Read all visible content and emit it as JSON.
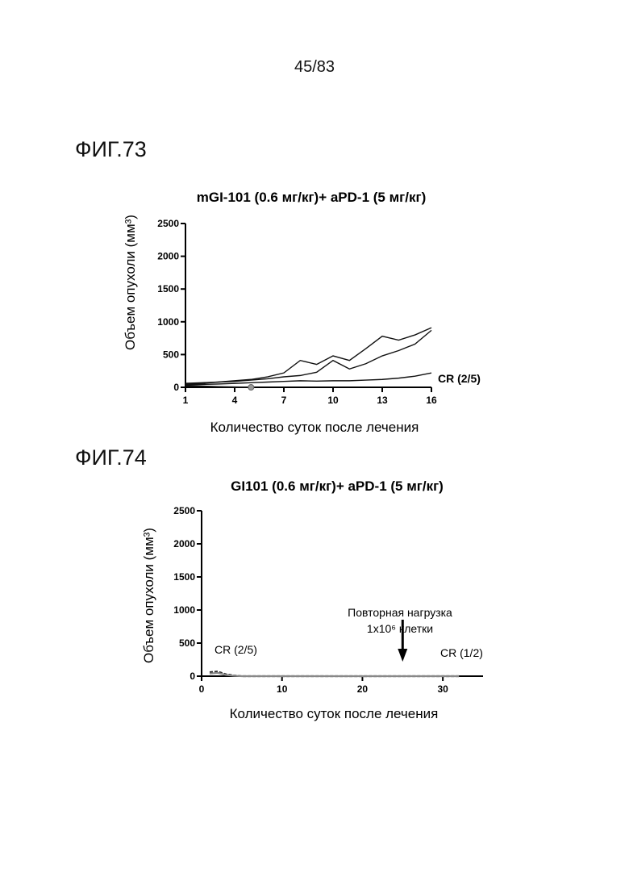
{
  "page": {
    "number": "45/83"
  },
  "figures": [
    {
      "label": "ФИГ.73",
      "title": "mGI-101 (0.6 мг/кг)+ aPD-1 (5 мг/кг)",
      "ylabel": "Объем опухоли (мм³)",
      "xlabel": "Количество суток после лечения",
      "annotation": "CR (2/5)"
    },
    {
      "label": "ФИГ.74",
      "title": "GI101 (0.6 мг/кг)+ aPD-1 (5 мг/кг)",
      "ylabel": "Объем опухоли (мм³)",
      "xlabel": "Количество суток после лечения",
      "annotation_left": "CR (2/5)",
      "annotation_right": "CR (1/2)",
      "arrow_label_1": "Повторная нагрузка",
      "arrow_label_2": "1x10⁶ клетки"
    }
  ],
  "chart_data": [
    {
      "type": "line",
      "title": "mGI-101 (0.6 мг/кг)+ aPD-1 (5 мг/кг)",
      "xlabel": "Количество суток после лечения",
      "ylabel": "Объем опухоли (мм³)",
      "xlim": [
        1,
        16
      ],
      "ylim": [
        0,
        2500
      ],
      "xticks": [
        1,
        4,
        7,
        10,
        13,
        16
      ],
      "yticks": [
        0,
        500,
        1000,
        1500,
        2000,
        2500
      ],
      "series": [
        {
          "x": [
            1,
            2,
            3,
            4,
            5,
            6,
            7,
            8,
            9,
            10,
            11,
            12,
            13,
            14,
            15,
            16
          ],
          "values": [
            60,
            70,
            80,
            100,
            120,
            160,
            220,
            410,
            350,
            480,
            410,
            590,
            780,
            720,
            800,
            910
          ]
        },
        {
          "x": [
            1,
            2,
            3,
            4,
            5,
            6,
            7,
            8,
            9,
            10,
            11,
            12,
            13,
            14,
            15,
            16
          ],
          "values": [
            50,
            60,
            80,
            90,
            110,
            130,
            160,
            180,
            230,
            410,
            280,
            360,
            480,
            560,
            660,
            870
          ]
        },
        {
          "x": [
            1,
            2,
            3,
            4,
            5,
            6,
            7,
            8,
            9,
            10,
            11,
            12,
            13,
            14,
            15,
            16
          ],
          "values": [
            40,
            45,
            50,
            60,
            70,
            80,
            90,
            100,
            95,
            100,
            100,
            110,
            120,
            140,
            170,
            220
          ]
        },
        {
          "x": [
            1,
            2,
            3,
            4,
            5
          ],
          "values": [
            30,
            20,
            10,
            5,
            0
          ]
        },
        {
          "x": [
            1,
            2,
            3,
            4,
            5
          ],
          "values": [
            20,
            10,
            5,
            0,
            0
          ]
        }
      ],
      "markers": [
        {
          "x": 5,
          "y": 0
        }
      ],
      "annotations": [
        {
          "text": "CR (2/5)",
          "x": 16,
          "y": 150
        }
      ]
    },
    {
      "type": "line",
      "title": "GI101 (0.6 мг/кг)+ aPD-1 (5 мг/кг)",
      "xlabel": "Количество суток после лечения",
      "ylabel": "Объем опухоли (мм³)",
      "xlim": [
        0,
        35
      ],
      "ylim": [
        0,
        2500
      ],
      "xticks": [
        0,
        10,
        20,
        30
      ],
      "yticks": [
        0,
        500,
        1000,
        1500,
        2000,
        2500
      ],
      "series": [
        {
          "x": [
            1,
            2,
            3,
            4,
            5,
            8,
            11,
            14,
            17,
            20,
            23,
            26,
            29,
            32
          ],
          "values": [
            60,
            70,
            30,
            10,
            0,
            0,
            0,
            0,
            0,
            0,
            0,
            0,
            0,
            0
          ]
        },
        {
          "x": [
            1,
            2,
            3,
            4,
            5,
            8,
            11,
            14,
            17,
            20,
            23,
            26,
            29,
            32
          ],
          "values": [
            40,
            50,
            20,
            5,
            0,
            0,
            0,
            0,
            0,
            0,
            0,
            0,
            0,
            0
          ]
        }
      ],
      "event": {
        "x": 25,
        "label": "Повторная нагрузка 1x10⁶ клетки"
      },
      "annotations": [
        {
          "text": "CR (2/5)",
          "x": 3
        },
        {
          "text": "CR (1/2)",
          "x": 32
        }
      ]
    }
  ]
}
